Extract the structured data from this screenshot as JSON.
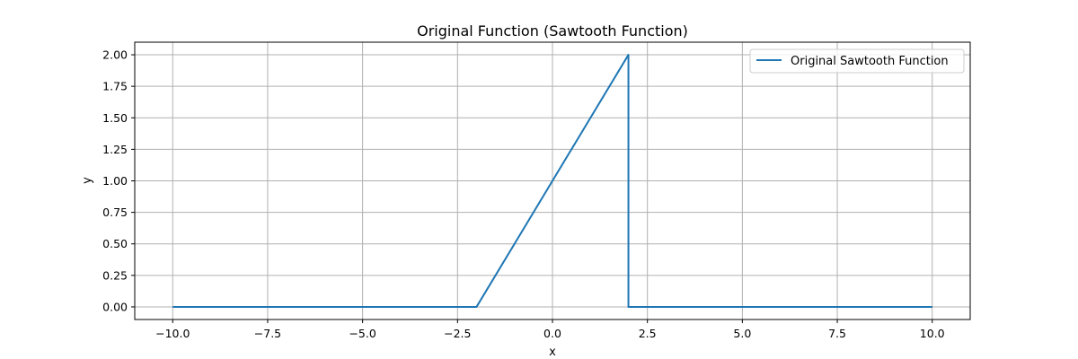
{
  "chart_data": {
    "type": "line",
    "title": "Original Function (Sawtooth Function)",
    "xlabel": "x",
    "ylabel": "y",
    "xlim": [
      -11,
      11
    ],
    "ylim": [
      -0.1,
      2.1
    ],
    "xticks": [
      -10.0,
      -7.5,
      -5.0,
      -2.5,
      0.0,
      2.5,
      5.0,
      7.5,
      10.0
    ],
    "xtick_labels": [
      "−10.0",
      "−7.5",
      "−5.0",
      "−2.5",
      "0.0",
      "2.5",
      "5.0",
      "7.5",
      "10.0"
    ],
    "yticks": [
      0.0,
      0.25,
      0.5,
      0.75,
      1.0,
      1.25,
      1.5,
      1.75,
      2.0
    ],
    "ytick_labels": [
      "0.00",
      "0.25",
      "0.50",
      "0.75",
      "1.00",
      "1.25",
      "1.50",
      "1.75",
      "2.00"
    ],
    "grid": true,
    "legend_position": "top-right",
    "series": [
      {
        "name": "Original Sawtooth Function",
        "color": "#1f77b4",
        "x": [
          -10,
          -2,
          2,
          2,
          10
        ],
        "y": [
          0,
          0,
          2,
          0,
          0
        ]
      }
    ]
  }
}
